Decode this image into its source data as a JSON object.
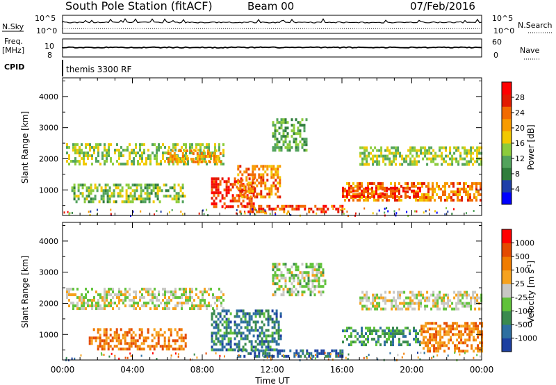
{
  "header": {
    "station": "South Pole Station (fitACF)",
    "beam": "Beam 00",
    "date": "07/Feb/2016"
  },
  "top_panels": {
    "nsky_label": "N.Sky",
    "nsky_ticks": [
      "10^5",
      "10^0"
    ],
    "nsky_right_ticks": [
      "10^5",
      "10^0"
    ],
    "nsearch_label": "N.Search",
    "freq_label_1": "Freq.",
    "freq_label_2": "[MHz]",
    "freq_ticks": [
      "10",
      "8"
    ],
    "nave_ticks": [
      "60",
      "0"
    ],
    "nave_label": "Nave",
    "cpid_label": "CPID",
    "cpid_value": "themis 3300 RF"
  },
  "axes": {
    "ylabel": "Slant Range [km]",
    "xlabel": "Time UT",
    "x_ticks": [
      "00:00",
      "04:00",
      "08:00",
      "12:00",
      "16:00",
      "20:00",
      "00:00"
    ],
    "y_ticks": [
      "4000",
      "3000",
      "2000",
      "1000"
    ]
  },
  "power_colorbar": {
    "label": "Power [dB]",
    "ticks": [
      "28",
      "24",
      "20",
      "16",
      "12",
      "8",
      "4"
    ],
    "colors": [
      "#0000ff",
      "#1e3fa8",
      "#2f7d3c",
      "#52a35c",
      "#8ccc3c",
      "#f2c900",
      "#f89b00",
      "#f26b00",
      "#e21a00",
      "#ff0000"
    ]
  },
  "velocity_colorbar": {
    "label": "Velocity [m s",
    "label_sup": "-1",
    "label_end": "]",
    "ticks": [
      "1000",
      "500",
      "100",
      "25",
      "-25",
      "-100",
      "-500",
      "-1000"
    ],
    "colors": [
      "#1c3fa0",
      "#2e6fa0",
      "#3a8a4e",
      "#60c23a",
      "#c8c8c4",
      "#f6a21e",
      "#f07c00",
      "#e44a00",
      "#ff0000"
    ]
  },
  "chart_data": [
    {
      "type": "heatmap",
      "title": "Power",
      "xlabel": "Time UT",
      "ylabel": "Slant Range [km]",
      "xlim_hours": [
        0,
        24
      ],
      "ylim_km": [
        180,
        4600
      ],
      "colorbar_range_db": [
        0,
        30
      ],
      "regions": [
        {
          "t0": 0.2,
          "t1": 9.2,
          "r0": 1800,
          "r1": 2500,
          "level": 0.45
        },
        {
          "t0": 6.0,
          "t1": 9.0,
          "r0": 1900,
          "r1": 2300,
          "level": 0.65
        },
        {
          "t0": 8.5,
          "t1": 11.0,
          "r0": 500,
          "r1": 1400,
          "level": 0.85
        },
        {
          "t0": 10.0,
          "t1": 16.0,
          "r0": 330,
          "r1": 520,
          "level": 0.82
        },
        {
          "t0": 10.0,
          "t1": 12.5,
          "r0": 800,
          "r1": 1800,
          "level": 0.7
        },
        {
          "t0": 16.0,
          "t1": 24.0,
          "r0": 700,
          "r1": 1250,
          "level": 0.7
        },
        {
          "t0": 16.0,
          "t1": 20.5,
          "r0": 750,
          "r1": 1100,
          "level": 0.85
        },
        {
          "t0": 17.0,
          "t1": 24.0,
          "r0": 1800,
          "r1": 2400,
          "level": 0.45
        },
        {
          "t0": 0.5,
          "t1": 7.0,
          "r0": 650,
          "r1": 1200,
          "level": 0.4
        },
        {
          "t0": 12.0,
          "t1": 14.0,
          "r0": 2300,
          "r1": 3300,
          "level": 0.35
        }
      ]
    },
    {
      "type": "heatmap",
      "title": "Velocity",
      "xlabel": "Time UT",
      "ylabel": "Slant Range [km]",
      "xlim_hours": [
        0,
        24
      ],
      "ylim_km": [
        180,
        4600
      ],
      "colorbar_range_ms": [
        -1000,
        1000
      ],
      "regions": [
        {
          "t0": 0.2,
          "t1": 9.2,
          "r0": 1800,
          "r1": 2500,
          "level": 0.5
        },
        {
          "t0": 17.0,
          "t1": 24.0,
          "r0": 1800,
          "r1": 2400,
          "level": 0.5
        },
        {
          "t0": 10.0,
          "t1": 16.0,
          "r0": 330,
          "r1": 520,
          "level": 0.13
        },
        {
          "t0": 8.5,
          "t1": 12.5,
          "r0": 500,
          "r1": 1800,
          "level": 0.22
        },
        {
          "t0": 16.0,
          "t1": 20.5,
          "r0": 700,
          "r1": 1250,
          "level": 0.28
        },
        {
          "t0": 20.5,
          "t1": 24.0,
          "r0": 500,
          "r1": 1400,
          "level": 0.72
        },
        {
          "t0": 1.5,
          "t1": 7.0,
          "r0": 500,
          "r1": 1200,
          "level": 0.72
        },
        {
          "t0": 12.0,
          "t1": 15.0,
          "r0": 2300,
          "r1": 3300,
          "level": 0.45
        }
      ]
    }
  ]
}
